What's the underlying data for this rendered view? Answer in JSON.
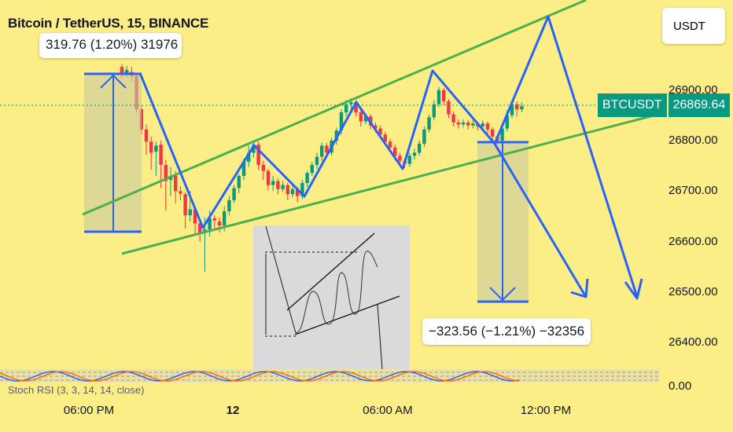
{
  "header": {
    "title": "Bitcoin / TetherUS, 15, BINANCE"
  },
  "currency_button": {
    "label": "USDT"
  },
  "price_tag": {
    "symbol": "BTCUSDT",
    "value": "26869.64"
  },
  "measure_up": {
    "text": "319.76 (1.20%) 31976"
  },
  "measure_down": {
    "text": "−323.56 (−1.21%) −32356"
  },
  "oscillator": {
    "label": "Stoch RSI (3, 3, 14, 14, close)",
    "tick": "0.00"
  },
  "chart_data": {
    "type": "candlestick",
    "title": "Bitcoin / TetherUS, 15, BINANCE",
    "y_ticks": [
      "26900.00",
      "26800.00",
      "26700.00",
      "26600.00",
      "26500.00",
      "26400.00"
    ],
    "x_ticks": [
      "06:00 PM",
      "12",
      "06:00 AM",
      "12:00 PM"
    ],
    "ylim": [
      26340,
      26960
    ],
    "last_price": 26869.64,
    "colors": {
      "up": "#089981",
      "down": "#f23645",
      "background": "#fcee86",
      "channel": "#4caf50",
      "pattern": "#2962ff"
    },
    "candles": [
      [
        26946,
        26930,
        26952,
        26924
      ],
      [
        26934,
        26940,
        26948,
        26926
      ],
      [
        26936,
        26928,
        26946,
        26918
      ],
      [
        26928,
        26862,
        26932,
        26855
      ],
      [
        26862,
        26822,
        26870,
        26812
      ],
      [
        26822,
        26798,
        26832,
        26772
      ],
      [
        26798,
        26776,
        26808,
        26742
      ],
      [
        26778,
        26790,
        26798,
        26730
      ],
      [
        26792,
        26752,
        26800,
        26706
      ],
      [
        26752,
        26720,
        26762,
        26662
      ],
      [
        26722,
        26730,
        26748,
        26690
      ],
      [
        26730,
        26700,
        26740,
        26676
      ],
      [
        26700,
        26695,
        26710,
        26682
      ],
      [
        26694,
        26652,
        26698,
        26626
      ],
      [
        26652,
        26664,
        26700,
        26640
      ],
      [
        26664,
        26636,
        26668,
        26612
      ],
      [
        26636,
        26616,
        26640,
        26600
      ],
      [
        26618,
        26624,
        26648,
        26540
      ],
      [
        26624,
        26646,
        26662,
        26610
      ],
      [
        26646,
        26642,
        26652,
        26626
      ],
      [
        26640,
        26632,
        26648,
        26618
      ],
      [
        26632,
        26660,
        26670,
        26620
      ],
      [
        26660,
        26682,
        26690,
        26652
      ],
      [
        26682,
        26706,
        26712,
        26676
      ],
      [
        26706,
        26730,
        26734,
        26696
      ],
      [
        26730,
        26758,
        26764,
        26722
      ],
      [
        26758,
        26776,
        26790,
        26748
      ],
      [
        26776,
        26792,
        26798,
        26766
      ],
      [
        26792,
        26752,
        26798,
        26742
      ],
      [
        26752,
        26740,
        26760,
        26722
      ],
      [
        26740,
        26712,
        26744,
        26702
      ],
      [
        26712,
        26720,
        26730,
        26700
      ],
      [
        26720,
        26704,
        26726,
        26694
      ],
      [
        26704,
        26712,
        26720,
        26698
      ],
      [
        26712,
        26694,
        26716,
        26682
      ],
      [
        26694,
        26704,
        26710,
        26688
      ],
      [
        26704,
        26690,
        26708,
        26678
      ],
      [
        26690,
        26716,
        26722,
        26684
      ],
      [
        26716,
        26736,
        26740,
        26708
      ],
      [
        26736,
        26752,
        26758,
        26730
      ],
      [
        26752,
        26768,
        26776,
        26744
      ],
      [
        26768,
        26790,
        26796,
        26760
      ],
      [
        26790,
        26776,
        26796,
        26768
      ],
      [
        26776,
        26800,
        26806,
        26770
      ],
      [
        26800,
        26820,
        26826,
        26792
      ],
      [
        26820,
        26856,
        26862,
        26812
      ],
      [
        26856,
        26872,
        26880,
        26848
      ],
      [
        26872,
        26876,
        26884,
        26862
      ],
      [
        26876,
        26856,
        26880,
        26848
      ],
      [
        26856,
        26838,
        26862,
        26828
      ],
      [
        26838,
        26848,
        26854,
        26832
      ],
      [
        26848,
        26830,
        26852,
        26822
      ],
      [
        26830,
        26824,
        26836,
        26816
      ],
      [
        26824,
        26812,
        26830,
        26804
      ],
      [
        26812,
        26798,
        26818,
        26790
      ],
      [
        26798,
        26786,
        26804,
        26778
      ],
      [
        26786,
        26770,
        26792,
        26762
      ],
      [
        26770,
        26760,
        26776,
        26752
      ],
      [
        26760,
        26754,
        26766,
        26746
      ],
      [
        26754,
        26770,
        26776,
        26748
      ],
      [
        26770,
        26776,
        26784,
        26762
      ],
      [
        26776,
        26794,
        26800,
        26770
      ],
      [
        26794,
        26822,
        26828,
        26788
      ],
      [
        26822,
        26846,
        26852,
        26816
      ],
      [
        26846,
        26872,
        26880,
        26840
      ],
      [
        26872,
        26900,
        26906,
        26866
      ],
      [
        26900,
        26878,
        26904,
        26870
      ],
      [
        26878,
        26852,
        26882,
        26844
      ],
      [
        26852,
        26836,
        26858,
        26828
      ],
      [
        26836,
        26832,
        26842,
        26824
      ],
      [
        26832,
        26836,
        26842,
        26826
      ],
      [
        26836,
        26830,
        26840,
        26822
      ],
      [
        26830,
        26834,
        26840,
        26824
      ],
      [
        26834,
        26828,
        26838,
        26820
      ],
      [
        26828,
        26834,
        26840,
        26824
      ],
      [
        26834,
        26822,
        26838,
        26810
      ],
      [
        26822,
        26808,
        26826,
        26796
      ],
      [
        26808,
        26800,
        26812,
        26792
      ],
      [
        26800,
        26824,
        26830,
        26796
      ],
      [
        26824,
        26850,
        26860,
        26818
      ],
      [
        26850,
        26872,
        26878,
        26844
      ],
      [
        26872,
        26862,
        26878,
        26848
      ],
      [
        26862,
        26868,
        26876,
        26856
      ]
    ]
  }
}
